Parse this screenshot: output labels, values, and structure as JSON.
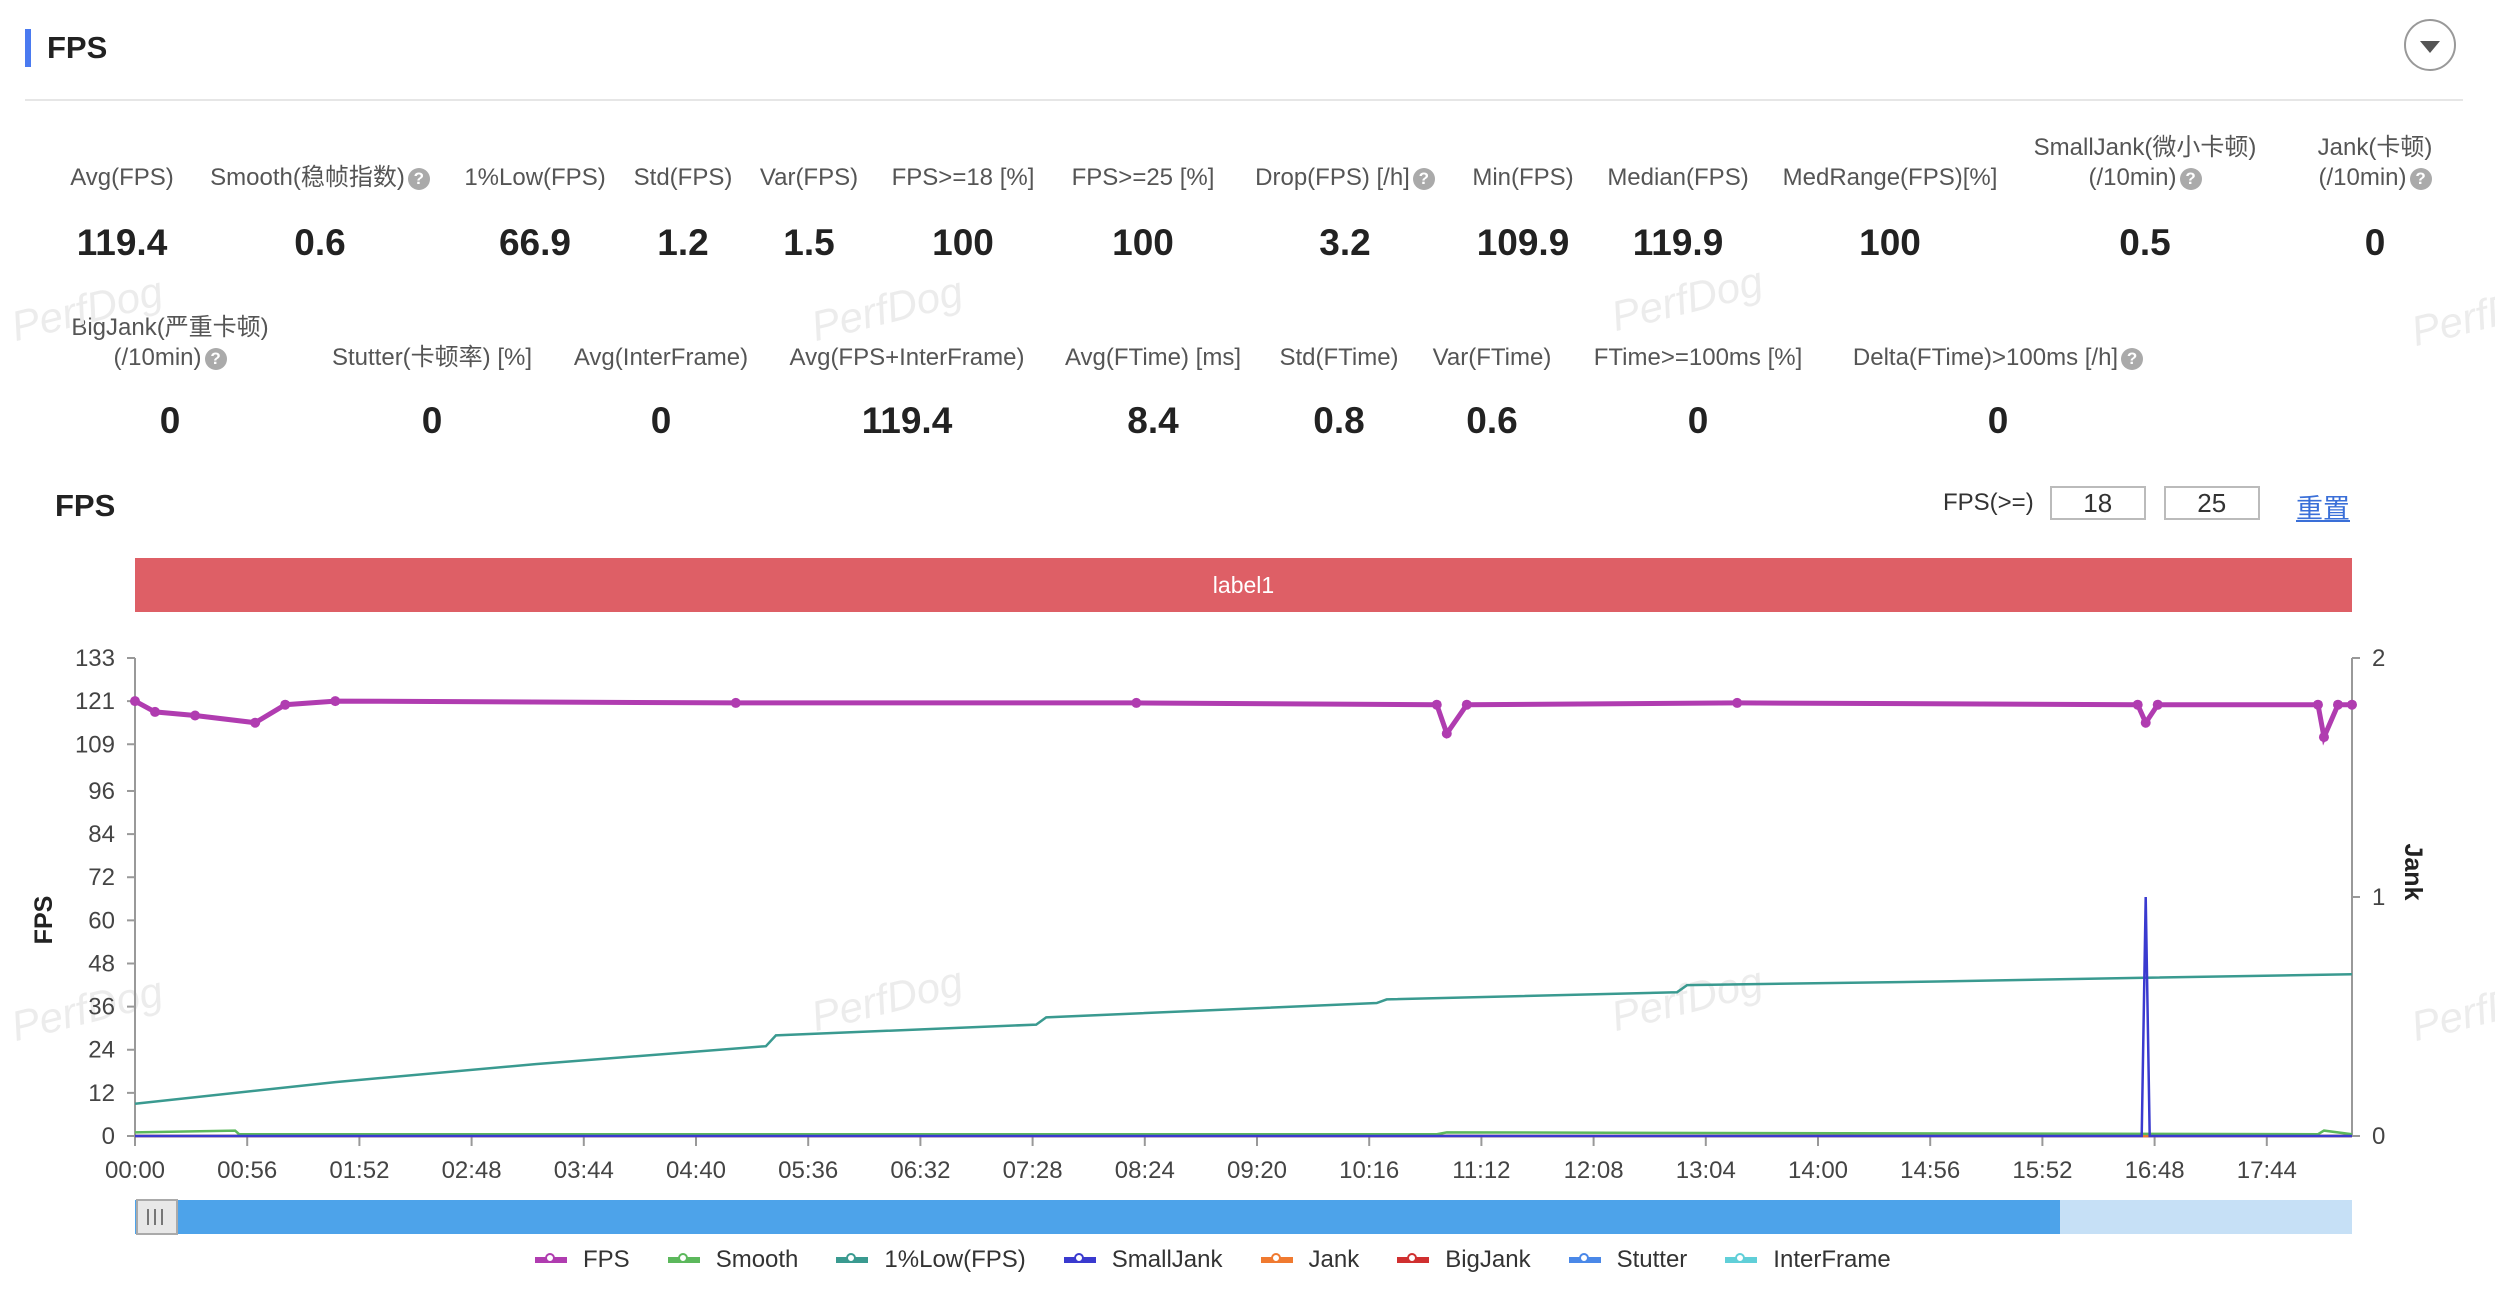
{
  "title": "FPS",
  "metrics_row1": [
    {
      "label": "Avg(FPS)",
      "value": "119.4",
      "help": false
    },
    {
      "label": "Smooth(稳帧指数)",
      "value": "0.6",
      "help": true
    },
    {
      "label": "1%Low(FPS)",
      "value": "66.9",
      "help": false
    },
    {
      "label": "Std(FPS)",
      "value": "1.2",
      "help": false
    },
    {
      "label": "Var(FPS)",
      "value": "1.5",
      "help": false
    },
    {
      "label": "FPS>=18 [%]",
      "value": "100",
      "help": false
    },
    {
      "label": "FPS>=25 [%]",
      "value": "100",
      "help": false
    },
    {
      "label": "Drop(FPS) [/h]",
      "value": "3.2",
      "help": true
    },
    {
      "label": "Min(FPS)",
      "value": "109.9",
      "help": false
    },
    {
      "label": "Median(FPS)",
      "value": "119.9",
      "help": false
    },
    {
      "label": "MedRange(FPS)[%]",
      "value": "100",
      "help": false
    },
    {
      "label": "SmallJank(微小卡顿)",
      "label2": "(/10min)",
      "value": "0.5",
      "help": true
    },
    {
      "label": "Jank(卡顿)",
      "label2": "(/10min)",
      "value": "0",
      "help": true
    }
  ],
  "metrics_row2": [
    {
      "label": "BigJank(严重卡顿)",
      "label2": "(/10min)",
      "value": "0",
      "help": true
    },
    {
      "label": "Stutter(卡顿率) [%]",
      "value": "0",
      "help": false
    },
    {
      "label": "Avg(InterFrame)",
      "value": "0",
      "help": false
    },
    {
      "label": "Avg(FPS+InterFrame)",
      "value": "119.4",
      "help": false
    },
    {
      "label": "Avg(FTime) [ms]",
      "value": "8.4",
      "help": false
    },
    {
      "label": "Std(FTime)",
      "value": "0.8",
      "help": false
    },
    {
      "label": "Var(FTime)",
      "value": "0.6",
      "help": false
    },
    {
      "label": "FTime>=100ms [%]",
      "value": "0",
      "help": false
    },
    {
      "label": "Delta(FTime)>100ms [/h]",
      "value": "0",
      "help": true
    }
  ],
  "watermark": "PerfDog",
  "chart_section": {
    "title": "FPS",
    "filter_label": "FPS(>=)",
    "filter_value_1": "18",
    "filter_value_2": "25",
    "reset_label": "重置",
    "band_label": "label1"
  },
  "colors": {
    "accent": "#4a7af0",
    "band": "#de5f66",
    "fps": "#b03cb0",
    "smooth": "#5cb85c",
    "low1": "#3a9a90",
    "smalljank": "#3a3acf",
    "jank": "#f07a30",
    "bigjank": "#d03030",
    "stutter": "#4a88e8",
    "interframe": "#60cfd8"
  },
  "chart_data": {
    "type": "line",
    "y_left_label": "FPS",
    "y_right_label": "Jank",
    "y_left_ticks": [
      "133",
      "121",
      "109",
      "96",
      "84",
      "72",
      "60",
      "48",
      "36",
      "24",
      "12",
      "0"
    ],
    "y_right_ticks": [
      "2",
      "1",
      "0"
    ],
    "ylim_left": [
      0,
      133
    ],
    "ylim_right": [
      0,
      2
    ],
    "x_ticks": [
      "00:00",
      "00:56",
      "01:52",
      "02:48",
      "03:44",
      "04:40",
      "05:36",
      "06:32",
      "07:28",
      "08:24",
      "09:20",
      "10:16",
      "11:12",
      "12:08",
      "13:04",
      "14:00",
      "14:56",
      "15:52",
      "16:48",
      "17:44"
    ],
    "x_range_seconds": [
      0,
      1107
    ],
    "series": [
      {
        "name": "FPS",
        "axis": "left",
        "points": [
          [
            0,
            121
          ],
          [
            10,
            118
          ],
          [
            30,
            117
          ],
          [
            60,
            115
          ],
          [
            75,
            120
          ],
          [
            100,
            121
          ],
          [
            300,
            120.5
          ],
          [
            500,
            120.5
          ],
          [
            650,
            120
          ],
          [
            655,
            112
          ],
          [
            665,
            120
          ],
          [
            800,
            120.5
          ],
          [
            1000,
            120
          ],
          [
            1004,
            115
          ],
          [
            1010,
            120
          ],
          [
            1090,
            120
          ],
          [
            1093,
            111
          ],
          [
            1100,
            120
          ],
          [
            1107,
            120
          ]
        ]
      },
      {
        "name": "Smooth",
        "axis": "left",
        "points": [
          [
            0,
            1
          ],
          [
            50,
            1.5
          ],
          [
            52,
            0.5
          ],
          [
            650,
            0.5
          ],
          [
            655,
            1
          ],
          [
            1090,
            0.5
          ],
          [
            1093,
            1.5
          ],
          [
            1107,
            0.5
          ]
        ]
      },
      {
        "name": "1%Low(FPS)",
        "axis": "left",
        "points": [
          [
            0,
            9
          ],
          [
            100,
            15
          ],
          [
            200,
            20
          ],
          [
            315,
            25
          ],
          [
            320,
            28
          ],
          [
            450,
            31
          ],
          [
            455,
            33
          ],
          [
            620,
            37
          ],
          [
            625,
            38
          ],
          [
            770,
            40
          ],
          [
            775,
            42
          ],
          [
            900,
            43
          ],
          [
            1000,
            44
          ],
          [
            1107,
            45
          ]
        ]
      },
      {
        "name": "SmallJank",
        "axis": "right",
        "points": [
          [
            0,
            0
          ],
          [
            1002,
            0
          ],
          [
            1004,
            1.0
          ],
          [
            1006,
            0
          ],
          [
            1107,
            0
          ]
        ]
      },
      {
        "name": "Jank",
        "axis": "right",
        "points": [
          [
            0,
            0
          ],
          [
            1107,
            0
          ]
        ]
      },
      {
        "name": "BigJank",
        "axis": "right",
        "points": [
          [
            0,
            0
          ],
          [
            1107,
            0
          ]
        ]
      },
      {
        "name": "Stutter",
        "axis": "right",
        "points": [
          [
            0,
            0
          ],
          [
            1107,
            0
          ]
        ]
      },
      {
        "name": "InterFrame",
        "axis": "left",
        "points": [
          [
            0,
            0
          ],
          [
            1107,
            0
          ]
        ]
      }
    ],
    "legend": [
      "FPS",
      "Smooth",
      "1%Low(FPS)",
      "SmallJank",
      "Jank",
      "BigJank",
      "Stutter",
      "InterFrame"
    ],
    "grid": false,
    "legend_position": "bottom"
  }
}
